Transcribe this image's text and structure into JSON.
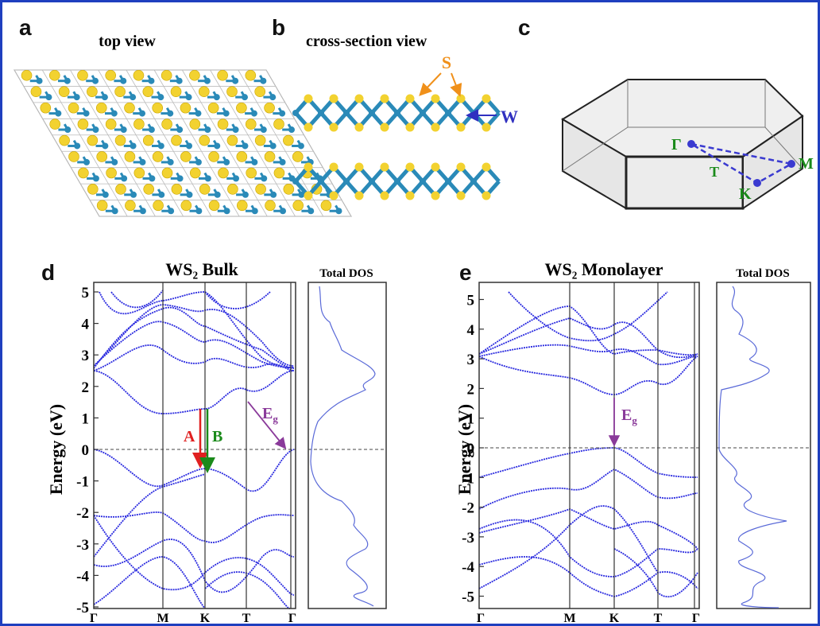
{
  "figure": {
    "a": {
      "label": "a",
      "title": "top view"
    },
    "b": {
      "label": "b",
      "title": "cross-section view",
      "sulfur": "S",
      "tungsten": "W"
    },
    "c": {
      "label": "c",
      "points": {
        "gamma": "Γ",
        "t": "T",
        "k": "K",
        "m": "M"
      }
    },
    "d": {
      "label": "d",
      "title": "WS₂ Bulk",
      "dos_title": "Total DOS",
      "ylabel": "Energy (eV)",
      "yticks": [
        5,
        4,
        3,
        2,
        1,
        0,
        -1,
        -2,
        -3,
        -4,
        -5
      ],
      "xticks": [
        "Γ",
        "M",
        "K",
        "T",
        "Γ"
      ],
      "annotations": {
        "a": "A",
        "b": "B",
        "eg": {
          "main": "E",
          "sub": "g"
        }
      }
    },
    "e": {
      "label": "e",
      "title": "WS₂ Monolayer",
      "dos_title": "Total DOS",
      "ylabel": "Energy (eV)",
      "yticks": [
        5,
        4,
        3,
        2,
        1,
        0,
        -1,
        -2,
        -3,
        -4,
        -5
      ],
      "xticks": [
        "Γ",
        "M",
        "K",
        "T",
        "Γ"
      ],
      "annotations": {
        "eg": {
          "main": "E",
          "sub": "g"
        }
      }
    }
  }
}
